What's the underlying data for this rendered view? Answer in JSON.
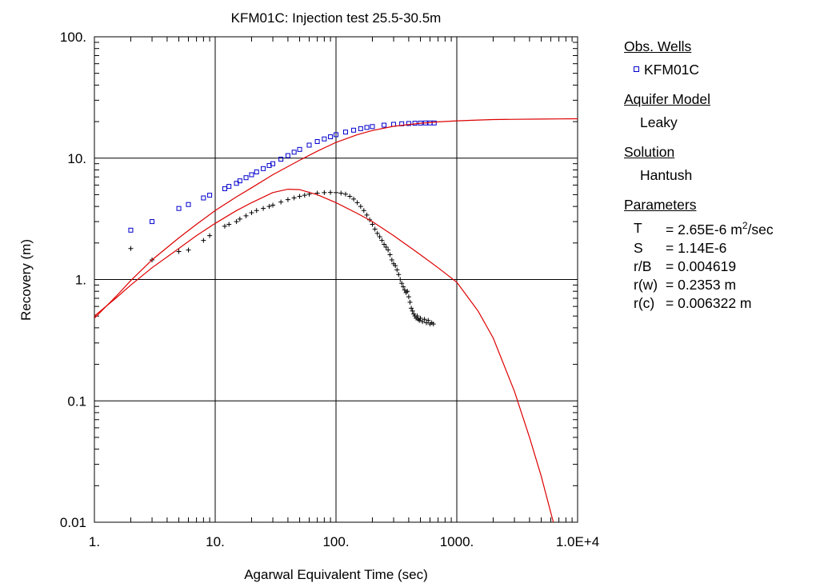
{
  "chart_data": {
    "type": "scatter",
    "title": "KFM01C: Injection test 25.5-30.5m",
    "xlabel": "Agarwal Equivalent Time (sec)",
    "ylabel": "Recovery (m)",
    "xscale": "log",
    "yscale": "log",
    "xlim": [
      1,
      10000
    ],
    "ylim": [
      0.01,
      100
    ],
    "grid": true,
    "x_tick_labels": [
      "1.",
      "10.",
      "100.",
      "1000.",
      "1.0E+4"
    ],
    "y_tick_labels": [
      "0.01",
      "0.1",
      "1.",
      "10.",
      "100."
    ],
    "x_ticks": [
      1,
      10,
      100,
      1000,
      10000
    ],
    "y_ticks": [
      0.01,
      0.1,
      1,
      10,
      100
    ],
    "series": [
      {
        "name": "KFM01C",
        "kind": "points",
        "marker": "square",
        "color": "#0000cc",
        "x": [
          2,
          3,
          5,
          6,
          8,
          9,
          12,
          13,
          15,
          16,
          18,
          20,
          22,
          25,
          28,
          30,
          35,
          40,
          45,
          50,
          60,
          70,
          80,
          90,
          100,
          120,
          140,
          160,
          180,
          200,
          250,
          300,
          350,
          400,
          450,
          500,
          550,
          600,
          650
        ],
        "y": [
          2.55,
          3.0,
          3.85,
          4.15,
          4.7,
          4.95,
          5.6,
          5.85,
          6.2,
          6.5,
          6.9,
          7.3,
          7.7,
          8.2,
          8.7,
          9.0,
          9.8,
          10.5,
          11.2,
          11.8,
          12.8,
          13.7,
          14.4,
          15.0,
          15.6,
          16.4,
          17.0,
          17.5,
          17.9,
          18.2,
          18.7,
          19.0,
          19.2,
          19.3,
          19.4,
          19.45,
          19.5,
          19.5,
          19.5
        ]
      },
      {
        "name": "",
        "kind": "points",
        "marker": "plus",
        "color": "#000000",
        "x": [
          2,
          3,
          5,
          6,
          8,
          9,
          12,
          13,
          15,
          16,
          18,
          20,
          22,
          25,
          28,
          30,
          35,
          40,
          45,
          50,
          55,
          60,
          70,
          80,
          90,
          100,
          110,
          120,
          130,
          140,
          150,
          160,
          170,
          180,
          190,
          200,
          210,
          220,
          230,
          240,
          250,
          260,
          270,
          280,
          290,
          300,
          310,
          320,
          330,
          340,
          350,
          360,
          370,
          380,
          390,
          400,
          410,
          420,
          430,
          440,
          450,
          460,
          470,
          480,
          490,
          500,
          520,
          540,
          560,
          580,
          600,
          620,
          640
        ],
        "y": [
          1.8,
          1.45,
          1.7,
          1.75,
          2.1,
          2.3,
          2.75,
          2.85,
          3.0,
          3.15,
          3.35,
          3.55,
          3.7,
          3.85,
          4.0,
          4.1,
          4.35,
          4.55,
          4.7,
          4.85,
          4.95,
          5.05,
          5.15,
          5.2,
          5.22,
          5.2,
          5.15,
          5.05,
          4.85,
          4.6,
          4.3,
          4.0,
          3.7,
          3.4,
          3.1,
          2.85,
          2.6,
          2.4,
          2.25,
          2.1,
          1.95,
          1.85,
          1.75,
          1.6,
          1.45,
          1.35,
          1.3,
          1.2,
          1.1,
          1.0,
          0.93,
          0.87,
          0.82,
          0.78,
          0.8,
          0.72,
          0.65,
          0.58,
          0.55,
          0.52,
          0.5,
          0.48,
          0.5,
          0.47,
          0.46,
          0.48,
          0.45,
          0.47,
          0.44,
          0.46,
          0.43,
          0.44,
          0.43
        ]
      },
      {
        "name": "",
        "kind": "line",
        "color": "#dd0000",
        "x": [
          1,
          1.5,
          2,
          3,
          5,
          7,
          10,
          15,
          20,
          30,
          50,
          70,
          100,
          150,
          200,
          300,
          500,
          700,
          1000,
          1500,
          2000,
          3000,
          5000,
          7000,
          10000
        ],
        "y": [
          0.48,
          0.72,
          0.98,
          1.45,
          2.2,
          2.85,
          3.7,
          4.8,
          5.7,
          7.3,
          9.6,
          11.4,
          13.5,
          15.6,
          16.9,
          18.3,
          19.4,
          19.9,
          20.3,
          20.6,
          20.8,
          20.9,
          21.0,
          21.05,
          21.1
        ]
      },
      {
        "name": "",
        "kind": "line",
        "color": "#dd0000",
        "x": [
          1,
          1.5,
          2,
          3,
          5,
          7,
          10,
          15,
          20,
          30,
          40,
          50,
          70,
          100,
          150,
          200,
          300,
          500,
          700,
          1000,
          1500,
          2000,
          3000,
          4000,
          5000,
          6000,
          6300
        ],
        "y": [
          0.5,
          0.7,
          0.9,
          1.25,
          1.8,
          2.3,
          2.9,
          3.7,
          4.3,
          5.2,
          5.55,
          5.5,
          5.0,
          4.3,
          3.5,
          3.0,
          2.3,
          1.6,
          1.25,
          0.95,
          0.55,
          0.33,
          0.12,
          0.05,
          0.024,
          0.012,
          0.01
        ]
      }
    ]
  },
  "legend": {
    "obs_wells_title": "Obs. Wells",
    "obs_well": "KFM01C",
    "aquifer_title": "Aquifer Model",
    "aquifer": "Leaky",
    "solution_title": "Solution",
    "solution": "Hantush",
    "parameters_title": "Parameters",
    "parameters": [
      {
        "name": "T",
        "value": "= 2.65E-6 m",
        "sup": "2",
        "tail": "/sec"
      },
      {
        "name": "S",
        "value": "= 1.14E-6",
        "sup": "",
        "tail": ""
      },
      {
        "name": "r/B",
        "value": "= 0.004619",
        "sup": "",
        "tail": ""
      },
      {
        "name": "r(w)",
        "value": "= 0.2353 m",
        "sup": "",
        "tail": ""
      },
      {
        "name": "r(c)",
        "value": "= 0.006322 m",
        "sup": "",
        "tail": ""
      }
    ]
  }
}
